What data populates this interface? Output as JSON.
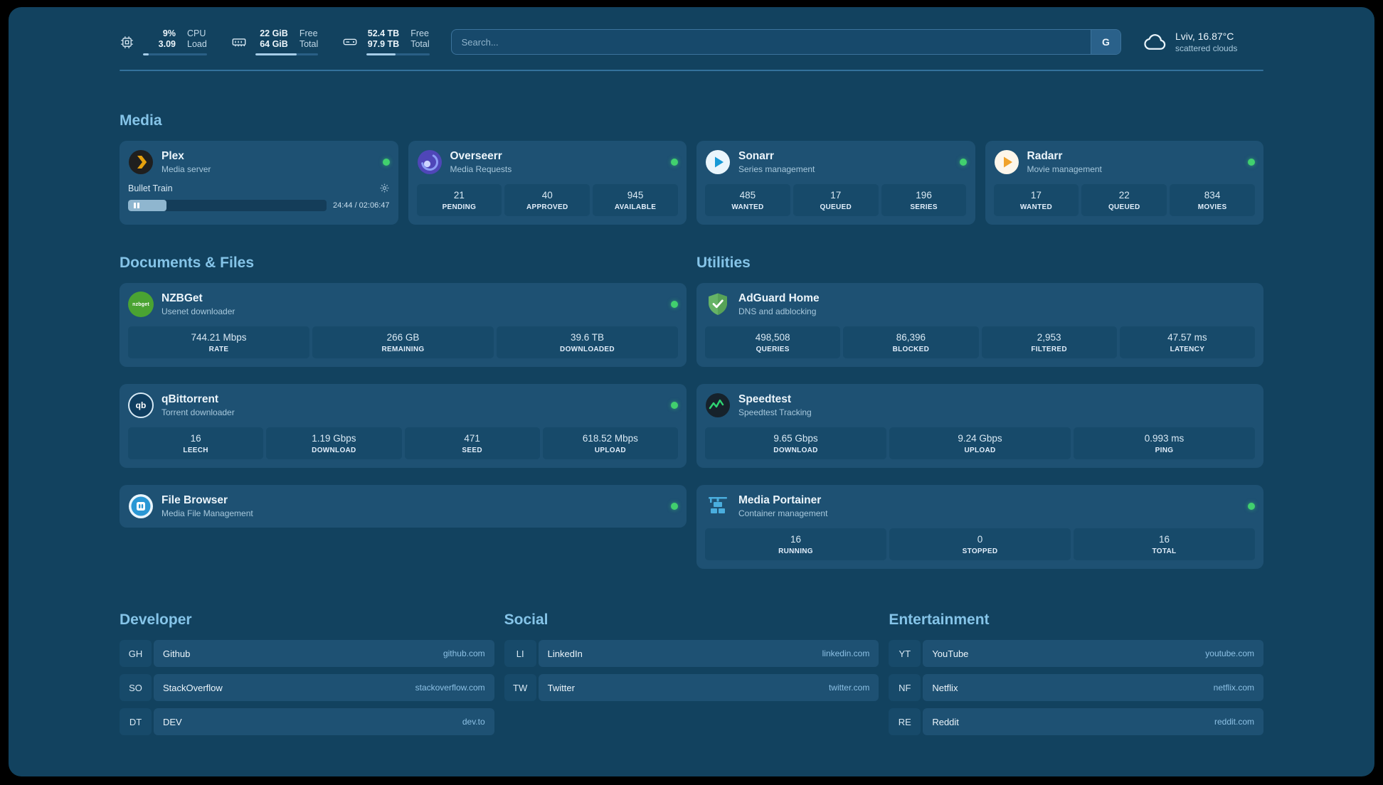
{
  "topbar": {
    "stats": [
      {
        "icon": "cpu-icon",
        "rows": [
          {
            "value": "9%",
            "label": "CPU"
          },
          {
            "value": "3.09",
            "label": "Load"
          }
        ],
        "progress": 9
      },
      {
        "icon": "memory-icon",
        "rows": [
          {
            "value": "22 GiB",
            "label": "Free"
          },
          {
            "value": "64 GiB",
            "label": "Total"
          }
        ],
        "progress": 66
      },
      {
        "icon": "disk-icon",
        "rows": [
          {
            "value": "52.4 TB",
            "label": "Free"
          },
          {
            "value": "97.9 TB",
            "label": "Total"
          }
        ],
        "progress": 46
      }
    ],
    "search": {
      "placeholder": "Search...",
      "button": "G"
    },
    "weather": {
      "location": "Lviv, 16.87°C",
      "condition": "scattered clouds"
    }
  },
  "media": {
    "title": "Media",
    "plex": {
      "name": "Plex",
      "desc": "Media server",
      "now_playing": "Bullet Train",
      "time": "24:44 / 02:06:47",
      "progress": 19.5
    },
    "overseerr": {
      "name": "Overseerr",
      "desc": "Media Requests",
      "stats": [
        {
          "value": "21",
          "label": "PENDING"
        },
        {
          "value": "40",
          "label": "APPROVED"
        },
        {
          "value": "945",
          "label": "AVAILABLE"
        }
      ]
    },
    "sonarr": {
      "name": "Sonarr",
      "desc": "Series management",
      "stats": [
        {
          "value": "485",
          "label": "WANTED"
        },
        {
          "value": "17",
          "label": "QUEUED"
        },
        {
          "value": "196",
          "label": "SERIES"
        }
      ]
    },
    "radarr": {
      "name": "Radarr",
      "desc": "Movie management",
      "stats": [
        {
          "value": "17",
          "label": "WANTED"
        },
        {
          "value": "22",
          "label": "QUEUED"
        },
        {
          "value": "834",
          "label": "MOVIES"
        }
      ]
    }
  },
  "documents": {
    "title": "Documents & Files",
    "nzbget": {
      "name": "NZBGet",
      "desc": "Usenet downloader",
      "icon_text": "nzbget",
      "stats": [
        {
          "value": "744.21 Mbps",
          "label": "RATE"
        },
        {
          "value": "266 GB",
          "label": "REMAINING"
        },
        {
          "value": "39.6 TB",
          "label": "DOWNLOADED"
        }
      ]
    },
    "qbittorrent": {
      "name": "qBittorrent",
      "desc": "Torrent downloader",
      "icon_text": "qb",
      "stats": [
        {
          "value": "16",
          "label": "LEECH"
        },
        {
          "value": "1.19 Gbps",
          "label": "DOWNLOAD"
        },
        {
          "value": "471",
          "label": "SEED"
        },
        {
          "value": "618.52 Mbps",
          "label": "UPLOAD"
        }
      ]
    },
    "filebrowser": {
      "name": "File Browser",
      "desc": "Media File Management"
    }
  },
  "utilities": {
    "title": "Utilities",
    "adguard": {
      "name": "AdGuard Home",
      "desc": "DNS and adblocking",
      "stats": [
        {
          "value": "498,508",
          "label": "QUERIES"
        },
        {
          "value": "86,396",
          "label": "BLOCKED"
        },
        {
          "value": "2,953",
          "label": "FILTERED"
        },
        {
          "value": "47.57 ms",
          "label": "LATENCY"
        }
      ]
    },
    "speedtest": {
      "name": "Speedtest",
      "desc": "Speedtest Tracking",
      "stats": [
        {
          "value": "9.65 Gbps",
          "label": "DOWNLOAD"
        },
        {
          "value": "9.24 Gbps",
          "label": "UPLOAD"
        },
        {
          "value": "0.993 ms",
          "label": "PING"
        }
      ]
    },
    "portainer": {
      "name": "Media Portainer",
      "desc": "Container management",
      "stats": [
        {
          "value": "16",
          "label": "RUNNING"
        },
        {
          "value": "0",
          "label": "STOPPED"
        },
        {
          "value": "16",
          "label": "TOTAL"
        }
      ]
    }
  },
  "bookmarks": [
    {
      "title": "Developer",
      "items": [
        {
          "abbr": "GH",
          "name": "Github",
          "url": "github.com"
        },
        {
          "abbr": "SO",
          "name": "StackOverflow",
          "url": "stackoverflow.com"
        },
        {
          "abbr": "DT",
          "name": "DEV",
          "url": "dev.to"
        }
      ]
    },
    {
      "title": "Social",
      "items": [
        {
          "abbr": "LI",
          "name": "LinkedIn",
          "url": "linkedin.com"
        },
        {
          "abbr": "TW",
          "name": "Twitter",
          "url": "twitter.com"
        }
      ]
    },
    {
      "title": "Entertainment",
      "items": [
        {
          "abbr": "YT",
          "name": "YouTube",
          "url": "youtube.com"
        },
        {
          "abbr": "NF",
          "name": "Netflix",
          "url": "netflix.com"
        },
        {
          "abbr": "RE",
          "name": "Reddit",
          "url": "reddit.com"
        }
      ]
    }
  ],
  "colors": {
    "background": "#12425f",
    "card": "#1e5173",
    "tile": "#174a6a",
    "section_header": "#85c4e8",
    "status_online": "#41d06e",
    "plex_orange": "#e5a00d"
  }
}
